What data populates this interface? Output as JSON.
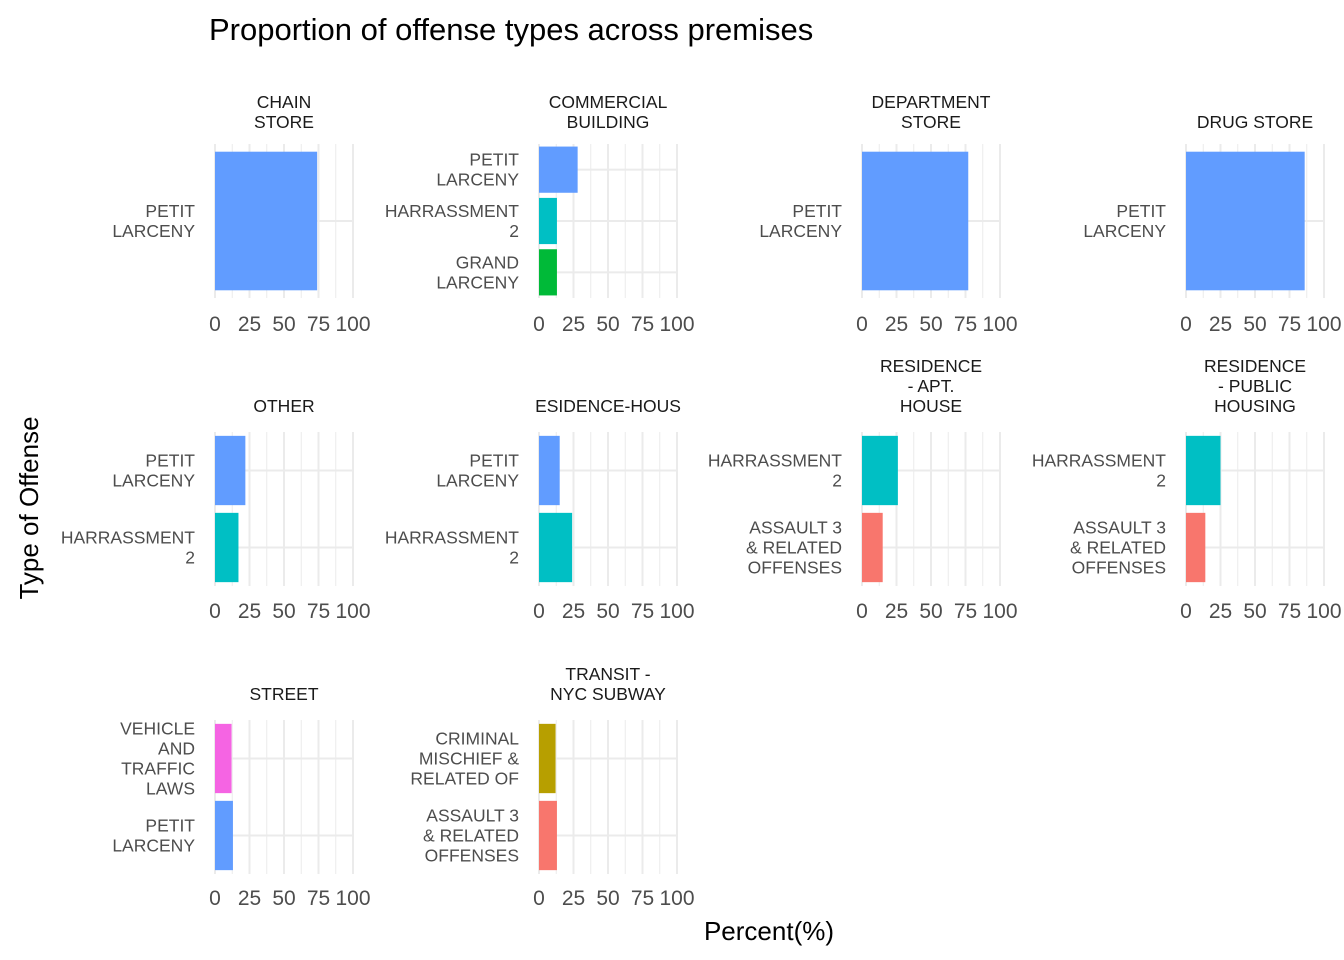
{
  "chart_data": {
    "type": "bar",
    "orientation": "horizontal",
    "title": "Proportion of offense types across premises",
    "xlabel": "Percent(%)",
    "ylabel": "Type of Offense",
    "xlim": [
      0,
      100
    ],
    "x_ticks": [
      "0",
      "25",
      "50",
      "75",
      "100"
    ],
    "colors": {
      "PETIT LARCENY": "#619CFF",
      "HARRASSMENT 2": "#00BFC4",
      "GRAND LARCENY": "#00BA38",
      "ASSAULT 3 & RELATED OFFENSES": "#F8766D",
      "VEHICLE AND TRAFFIC LAWS": "#F564E3",
      "CRIMINAL MISCHIEF & RELATED OF": "#B79F00"
    },
    "panels": [
      {
        "premise": "CHAIN STORE",
        "strip_lines": [
          "CHAIN",
          "STORE"
        ],
        "bars": [
          {
            "offense": "PETIT LARCENY",
            "label_lines": [
              "PETIT",
              "LARCENY"
            ],
            "value": 74
          }
        ]
      },
      {
        "premise": "COMMERCIAL BUILDING",
        "strip_lines": [
          "COMMERCIAL",
          "BUILDING"
        ],
        "bars": [
          {
            "offense": "PETIT LARCENY",
            "label_lines": [
              "PETIT",
              "LARCENY"
            ],
            "value": 28
          },
          {
            "offense": "HARRASSMENT 2",
            "label_lines": [
              "HARRASSMENT",
              "2"
            ],
            "value": 13
          },
          {
            "offense": "GRAND LARCENY",
            "label_lines": [
              "GRAND",
              "LARCENY"
            ],
            "value": 13
          }
        ]
      },
      {
        "premise": "DEPARTMENT STORE",
        "strip_lines": [
          "DEPARTMENT",
          "STORE"
        ],
        "bars": [
          {
            "offense": "PETIT LARCENY",
            "label_lines": [
              "PETIT",
              "LARCENY"
            ],
            "value": 77
          }
        ]
      },
      {
        "premise": "DRUG STORE",
        "strip_lines": [
          "DRUG STORE"
        ],
        "bars": [
          {
            "offense": "PETIT LARCENY",
            "label_lines": [
              "PETIT",
              "LARCENY"
            ],
            "value": 86
          }
        ]
      },
      {
        "premise": "OTHER",
        "strip_lines": [
          "OTHER"
        ],
        "bars": [
          {
            "offense": "PETIT LARCENY",
            "label_lines": [
              "PETIT",
              "LARCENY"
            ],
            "value": 22
          },
          {
            "offense": "HARRASSMENT 2",
            "label_lines": [
              "HARRASSMENT",
              "2"
            ],
            "value": 17
          }
        ]
      },
      {
        "premise": "RESIDENCE-HOUSE",
        "strip_lines": [
          "ESIDENCE-HOUS"
        ],
        "bars": [
          {
            "offense": "PETIT LARCENY",
            "label_lines": [
              "PETIT",
              "LARCENY"
            ],
            "value": 15
          },
          {
            "offense": "HARRASSMENT 2",
            "label_lines": [
              "HARRASSMENT",
              "2"
            ],
            "value": 24
          }
        ]
      },
      {
        "premise": "RESIDENCE - APT. HOUSE",
        "strip_lines": [
          "RESIDENCE",
          "- APT.",
          "HOUSE"
        ],
        "bars": [
          {
            "offense": "HARRASSMENT 2",
            "label_lines": [
              "HARRASSMENT",
              "2"
            ],
            "value": 26
          },
          {
            "offense": "ASSAULT 3 & RELATED OFFENSES",
            "label_lines": [
              "ASSAULT 3",
              "& RELATED",
              "OFFENSES"
            ],
            "value": 15
          }
        ]
      },
      {
        "premise": "RESIDENCE - PUBLIC HOUSING",
        "strip_lines": [
          "RESIDENCE",
          "- PUBLIC",
          "HOUSING"
        ],
        "bars": [
          {
            "offense": "HARRASSMENT 2",
            "label_lines": [
              "HARRASSMENT",
              "2"
            ],
            "value": 25
          },
          {
            "offense": "ASSAULT 3 & RELATED OFFENSES",
            "label_lines": [
              "ASSAULT 3",
              "& RELATED",
              "OFFENSES"
            ],
            "value": 14
          }
        ]
      },
      {
        "premise": "STREET",
        "strip_lines": [
          "STREET"
        ],
        "bars": [
          {
            "offense": "VEHICLE AND TRAFFIC LAWS",
            "label_lines": [
              "VEHICLE",
              "AND",
              "TRAFFIC",
              "LAWS"
            ],
            "value": 12
          },
          {
            "offense": "PETIT LARCENY",
            "label_lines": [
              "PETIT",
              "LARCENY"
            ],
            "value": 13
          }
        ]
      },
      {
        "premise": "TRANSIT - NYC SUBWAY",
        "strip_lines": [
          "TRANSIT -",
          "NYC SUBWAY"
        ],
        "bars": [
          {
            "offense": "CRIMINAL MISCHIEF & RELATED OF",
            "label_lines": [
              "CRIMINAL",
              "MISCHIEF &",
              "RELATED OF"
            ],
            "value": 12
          },
          {
            "offense": "ASSAULT 3 & RELATED OFFENSES",
            "label_lines": [
              "ASSAULT 3",
              "& RELATED",
              "OFFENSES"
            ],
            "value": 13
          }
        ]
      }
    ]
  }
}
